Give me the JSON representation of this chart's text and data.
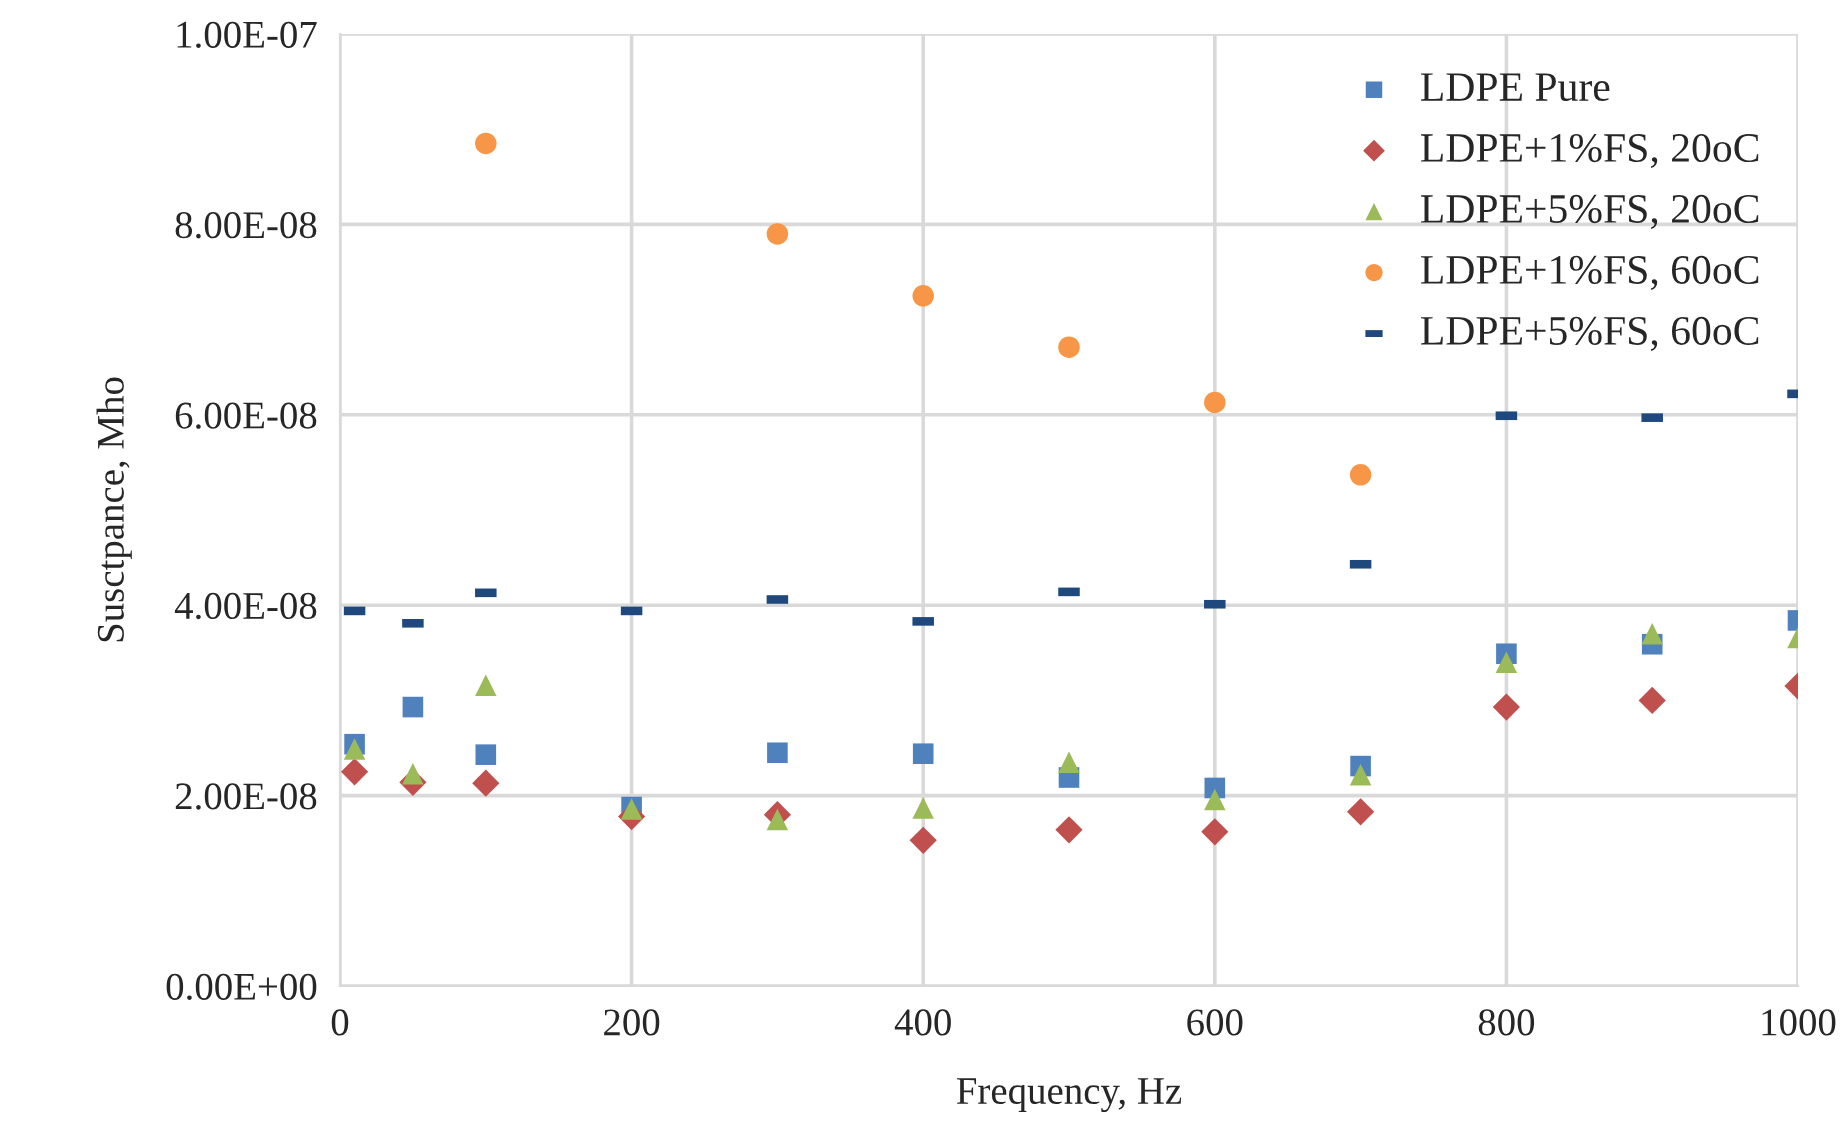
{
  "chart_data": {
    "type": "scatter",
    "xlabel": "Frequency, Hz",
    "ylabel": "Susctpance, Mho",
    "x": [
      10,
      50,
      100,
      200,
      300,
      400,
      500,
      600,
      700,
      800,
      900,
      1000
    ],
    "series": [
      {
        "name": "LDPE Pure",
        "color": "#4f81bd",
        "marker": "square",
        "values": [
          2.54e-08,
          2.93e-08,
          2.43e-08,
          1.88e-08,
          2.45e-08,
          2.44e-08,
          2.19e-08,
          2.08e-08,
          2.31e-08,
          3.49e-08,
          3.59e-08,
          3.84e-08
        ]
      },
      {
        "name": "LDPE+1%FS, 20oC",
        "color": "#c0504d",
        "marker": "diamond",
        "values": [
          2.25e-08,
          2.14e-08,
          2.13e-08,
          1.78e-08,
          1.8e-08,
          1.53e-08,
          1.64e-08,
          1.62e-08,
          1.83e-08,
          2.93e-08,
          3e-08,
          3.15e-08
        ]
      },
      {
        "name": "LDPE+5%FS, 20oC",
        "color": "#9bbb59",
        "marker": "triangle",
        "values": [
          2.49e-08,
          2.23e-08,
          3.16e-08,
          1.86e-08,
          1.75e-08,
          1.87e-08,
          2.35e-08,
          1.96e-08,
          2.22e-08,
          3.4e-08,
          3.7e-08,
          3.66e-08
        ]
      },
      {
        "name": "LDPE+1%FS, 60oC",
        "color": "#f79646",
        "marker": "circle",
        "values": [
          null,
          null,
          8.85e-08,
          null,
          7.9e-08,
          7.25e-08,
          6.71e-08,
          6.13e-08,
          5.37e-08,
          null,
          null,
          null
        ]
      },
      {
        "name": "LDPE+5%FS, 60oC",
        "color": "#1f497d",
        "values": [
          3.94e-08,
          3.81e-08,
          4.13e-08,
          3.94e-08,
          4.06e-08,
          3.83e-08,
          4.14e-08,
          4.01e-08,
          4.43e-08,
          5.99e-08,
          5.97e-08,
          6.22e-08
        ]
      }
    ],
    "xlim": [
      0,
      1000
    ],
    "xticks": [
      0,
      200,
      400,
      600,
      800,
      1000
    ],
    "ylim": [
      0,
      1e-07
    ],
    "yticks": [
      {
        "value": 0,
        "label": "0.00E+00"
      },
      {
        "value": 2e-08,
        "label": "2.00E-08"
      },
      {
        "value": 4e-08,
        "label": "4.00E-08"
      },
      {
        "value": 6e-08,
        "label": "6.00E-08"
      },
      {
        "value": 8e-08,
        "label": "8.00E-08"
      },
      {
        "value": 1e-07,
        "label": "1.00E-07"
      }
    ],
    "grid": true,
    "legend": "top right"
  }
}
